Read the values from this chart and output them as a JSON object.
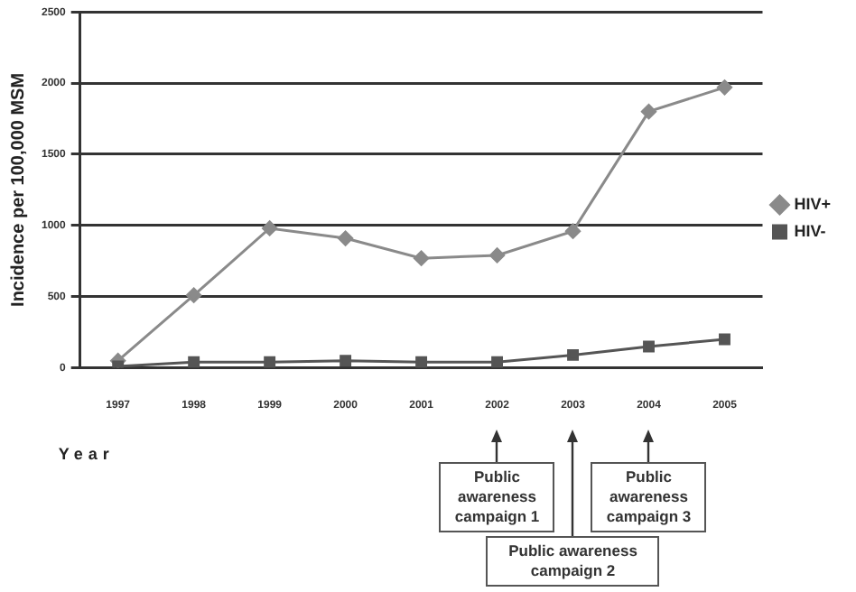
{
  "chart_data": {
    "type": "line",
    "xlabel": "Year",
    "ylabel": "Incidence per 100,000 MSM",
    "categories": [
      "1997",
      "1998",
      "1999",
      "2000",
      "2001",
      "2002",
      "2003",
      "2004",
      "2005"
    ],
    "series": [
      {
        "name": "HIV+",
        "color": "#8a8a8a",
        "marker": "diamond",
        "values": [
          50,
          510,
          980,
          910,
          770,
          790,
          960,
          1800,
          1970
        ]
      },
      {
        "name": "HIV-",
        "color": "#555555",
        "marker": "square",
        "values": [
          10,
          40,
          40,
          50,
          40,
          40,
          90,
          150,
          200
        ]
      }
    ],
    "ylim": [
      0,
      2500
    ],
    "yticks": [
      0,
      500,
      1000,
      1500,
      2000,
      2500
    ],
    "grid": "y",
    "legend": "right",
    "annotations": [
      "Public awareness campaign 1",
      "Public awareness campaign 2",
      "Public awareness campaign 3"
    ]
  }
}
